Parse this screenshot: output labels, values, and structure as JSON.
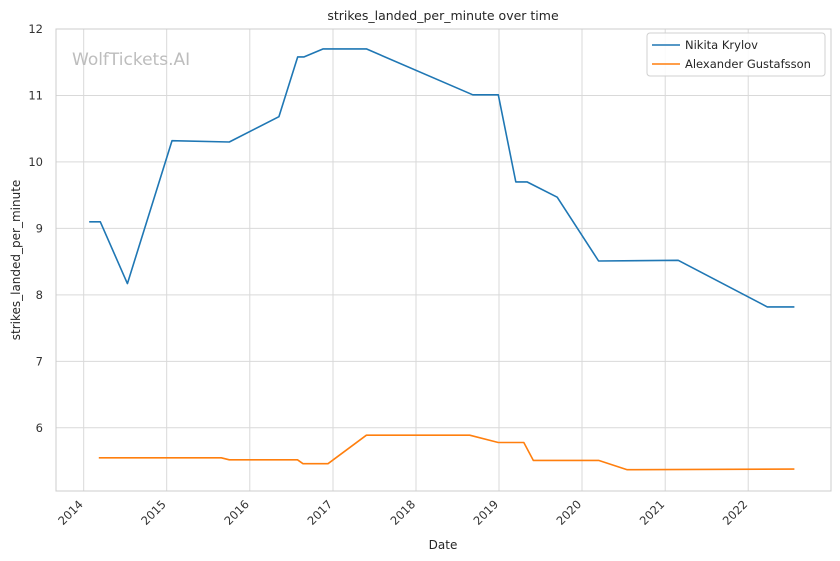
{
  "chart_data": {
    "type": "line",
    "title": "strikes_landed_per_minute over time",
    "xlabel": "Date",
    "ylabel": "strikes_landed_per_minute",
    "watermark": "WolfTickets.AI",
    "xlim": [
      "2013-09-01",
      "2022-12-31"
    ],
    "ylim": [
      5.05,
      12.0
    ],
    "x_ticks": [
      "2014-01-01",
      "2015-01-01",
      "2016-01-01",
      "2017-01-01",
      "2018-01-01",
      "2019-01-01",
      "2020-01-01",
      "2021-01-01",
      "2022-01-01"
    ],
    "x_tick_labels": [
      "2014",
      "2015",
      "2016",
      "2017",
      "2018",
      "2019",
      "2020",
      "2021",
      "2022"
    ],
    "y_ticks": [
      6,
      7,
      8,
      9,
      10,
      11,
      12
    ],
    "grid": true,
    "legend": "top-right",
    "series": [
      {
        "name": "Nikita Krylov",
        "color": "#1f77b4",
        "points": [
          [
            "2014-01-25",
            9.1
          ],
          [
            "2014-03-15",
            9.1
          ],
          [
            "2014-07-12",
            8.17
          ],
          [
            "2015-01-24",
            10.32
          ],
          [
            "2015-10-03",
            10.3
          ],
          [
            "2016-05-08",
            10.68
          ],
          [
            "2016-07-30",
            11.58
          ],
          [
            "2016-08-27",
            11.58
          ],
          [
            "2016-11-19",
            11.7
          ],
          [
            "2017-05-28",
            11.7
          ],
          [
            "2018-09-08",
            11.01
          ],
          [
            "2018-12-29",
            11.01
          ],
          [
            "2019-03-16",
            9.7
          ],
          [
            "2019-05-04",
            9.7
          ],
          [
            "2019-09-14",
            9.47
          ],
          [
            "2020-03-14",
            8.51
          ],
          [
            "2021-02-27",
            8.52
          ],
          [
            "2022-03-26",
            7.82
          ],
          [
            "2022-07-23",
            7.82
          ]
        ]
      },
      {
        "name": "Alexander Gustafsson",
        "color": "#ff7f0e",
        "points": [
          [
            "2014-03-08",
            5.55
          ],
          [
            "2015-08-29",
            5.55
          ],
          [
            "2015-10-03",
            5.52
          ],
          [
            "2016-07-29",
            5.52
          ],
          [
            "2016-08-22",
            5.46
          ],
          [
            "2016-12-10",
            5.46
          ],
          [
            "2017-05-28",
            5.89
          ],
          [
            "2018-08-25",
            5.89
          ],
          [
            "2018-12-29",
            5.78
          ],
          [
            "2019-04-20",
            5.78
          ],
          [
            "2019-06-01",
            5.51
          ],
          [
            "2020-03-14",
            5.51
          ],
          [
            "2020-07-18",
            5.37
          ],
          [
            "2022-07-23",
            5.38
          ]
        ]
      }
    ]
  }
}
